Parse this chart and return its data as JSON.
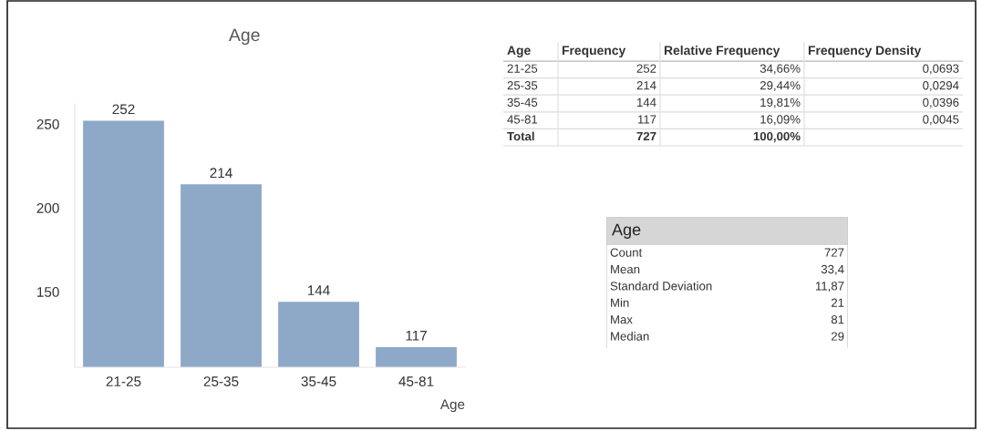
{
  "chart_data": [
    {
      "type": "bar",
      "title": "Age",
      "xlabel": "Age",
      "categories": [
        "21-25",
        "25-35",
        "35-45",
        "45-81"
      ],
      "values": [
        252,
        214,
        144,
        117
      ],
      "color": "#8ea8c8",
      "ylim": [
        105,
        262
      ],
      "yticks": [
        150,
        200,
        250
      ],
      "data_labels": true
    },
    {
      "type": "other",
      "categories": [
        "Age",
        "Frequency",
        "Relative Frequency",
        "Frequency Density"
      ],
      "y_categories": [
        "21-25",
        "25-35",
        "35-45",
        "45-81"
      ],
      "cell_labels": [
        [
          "252",
          "34,66%",
          "0,0693"
        ],
        [
          "214",
          "29,44%",
          "0,0294"
        ],
        [
          "144",
          "19,81%",
          "0,0396"
        ],
        [
          "117",
          "16,09%",
          "0,0045"
        ]
      ],
      "totals": [
        "Total",
        "727",
        "100,00%",
        null
      ]
    },
    {
      "type": "other",
      "title": "Age",
      "y_categories": [
        "Count",
        "Mean",
        "Standard Deviation",
        "Min",
        "Max",
        "Median"
      ],
      "cell_labels": [
        [
          "727"
        ],
        [
          "33,4"
        ],
        [
          "11,87"
        ],
        [
          "21"
        ],
        [
          "81"
        ],
        [
          "29"
        ]
      ]
    }
  ]
}
